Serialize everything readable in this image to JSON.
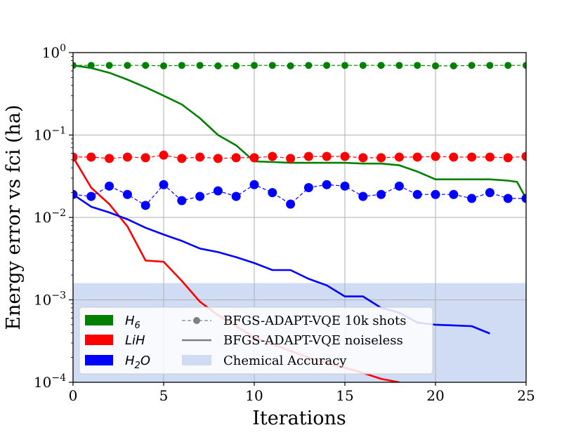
{
  "chart_data": {
    "type": "line",
    "title": "",
    "xlabel": "Iterations",
    "ylabel": "Energy error vs fci (ha)",
    "xlim": [
      0,
      25
    ],
    "ylim": [
      0.0001,
      1
    ],
    "yscale": "log",
    "grid": true,
    "x_ticks": [
      0,
      5,
      10,
      15,
      20,
      25
    ],
    "x_tick_labels": [
      "0",
      "5",
      "10",
      "15",
      "20",
      "25"
    ],
    "y_ticks": [
      {
        "value": 1,
        "base": "10",
        "exp": "0"
      },
      {
        "value": 0.1,
        "base": "10",
        "exp": "−1"
      },
      {
        "value": 0.01,
        "base": "10",
        "exp": "−2"
      },
      {
        "value": 0.001,
        "base": "10",
        "exp": "−3"
      },
      {
        "value": 0.0001,
        "base": "10",
        "exp": "−4"
      }
    ],
    "chemical_accuracy": {
      "label": "Chemical Accuracy",
      "y_max": 0.0016,
      "color": "#cfdcf4"
    },
    "series": [
      {
        "name": "H6",
        "label_base": "H",
        "label_sub": "6",
        "color": "#008000",
        "noisy": {
          "x": [
            0,
            1,
            2,
            3,
            4,
            5,
            6,
            7,
            8,
            9,
            10,
            11,
            12,
            13,
            14,
            15,
            16,
            17,
            18,
            19,
            20,
            21,
            22,
            23,
            24,
            25
          ],
          "y": [
            0.7,
            0.7,
            0.7,
            0.7,
            0.7,
            0.69,
            0.7,
            0.7,
            0.69,
            0.69,
            0.7,
            0.7,
            0.69,
            0.7,
            0.7,
            0.7,
            0.7,
            0.7,
            0.7,
            0.7,
            0.69,
            0.69,
            0.7,
            0.7,
            0.7,
            0.7
          ]
        },
        "noiseless": {
          "x": [
            0,
            1,
            2,
            3,
            4,
            5,
            6,
            7,
            8,
            9,
            10,
            11,
            12,
            13,
            14,
            15,
            16,
            17,
            18,
            19,
            20,
            21,
            22,
            23,
            24,
            24.5,
            25
          ],
          "y": [
            0.7,
            0.65,
            0.57,
            0.47,
            0.38,
            0.3,
            0.235,
            0.16,
            0.1,
            0.075,
            0.048,
            0.047,
            0.046,
            0.046,
            0.046,
            0.046,
            0.045,
            0.045,
            0.043,
            0.036,
            0.029,
            0.029,
            0.029,
            0.029,
            0.028,
            0.027,
            0.017
          ]
        }
      },
      {
        "name": "LiH",
        "label_base": "LiH",
        "label_sub": "",
        "color": "#ff0000",
        "noisy": {
          "x": [
            0,
            1,
            2,
            3,
            4,
            5,
            6,
            7,
            8,
            9,
            10,
            11,
            12,
            13,
            14,
            15,
            16,
            17,
            18,
            19,
            20,
            21,
            22,
            23,
            24,
            25
          ],
          "y": [
            0.054,
            0.054,
            0.052,
            0.054,
            0.053,
            0.057,
            0.052,
            0.054,
            0.052,
            0.053,
            0.053,
            0.055,
            0.052,
            0.055,
            0.055,
            0.055,
            0.053,
            0.053,
            0.054,
            0.054,
            0.055,
            0.054,
            0.054,
            0.054,
            0.053,
            0.055
          ]
        },
        "noiseless": {
          "x": [
            0,
            1,
            2,
            3,
            4,
            5,
            6,
            7,
            8,
            9,
            10,
            11,
            12,
            13,
            14,
            15,
            16,
            17,
            18
          ],
          "y": [
            0.054,
            0.023,
            0.0145,
            0.0078,
            0.003,
            0.0029,
            0.0017,
            0.00095,
            0.00065,
            0.00048,
            0.00035,
            0.00029,
            0.00024,
            0.0002,
            0.00017,
            0.00015,
            0.00013,
            0.00011,
            0.0001
          ]
        }
      },
      {
        "name": "H2O",
        "label_base": "H",
        "label_sub": "2",
        "label_tail": "O",
        "color": "#0000ff",
        "noisy": {
          "x": [
            0,
            1,
            2,
            3,
            4,
            5,
            6,
            7,
            8,
            9,
            10,
            11,
            12,
            13,
            14,
            15,
            16,
            17,
            18,
            19,
            20,
            21,
            22,
            23,
            24,
            25
          ],
          "y": [
            0.019,
            0.018,
            0.024,
            0.019,
            0.014,
            0.025,
            0.016,
            0.018,
            0.021,
            0.018,
            0.025,
            0.02,
            0.0145,
            0.023,
            0.025,
            0.024,
            0.018,
            0.019,
            0.024,
            0.019,
            0.019,
            0.019,
            0.017,
            0.02,
            0.017,
            0.017
          ]
        },
        "noiseless": {
          "x": [
            0,
            1,
            2,
            3,
            4,
            5,
            6,
            7,
            8,
            9,
            10,
            11,
            12,
            13,
            14,
            15,
            16,
            17,
            18,
            19,
            20,
            21,
            22,
            23
          ],
          "y": [
            0.019,
            0.0135,
            0.0115,
            0.0095,
            0.0075,
            0.0062,
            0.0052,
            0.0042,
            0.0038,
            0.0033,
            0.0028,
            0.0023,
            0.0023,
            0.0018,
            0.0015,
            0.0011,
            0.0011,
            0.0008,
            0.0007,
            0.00053,
            0.0005,
            0.00049,
            0.00048,
            0.00039
          ]
        }
      }
    ],
    "legend": {
      "placement": "lower-left",
      "style_entries": [
        {
          "label": "BFGS-ADAPT-VQE 10k shots",
          "kind": "dashed-marker",
          "color": "#808080"
        },
        {
          "label": "BFGS-ADAPT-VQE noiseless",
          "kind": "solid",
          "color": "#808080"
        },
        {
          "label": "Chemical Accuracy",
          "kind": "patch",
          "color": "#cfdcf4"
        }
      ]
    }
  }
}
